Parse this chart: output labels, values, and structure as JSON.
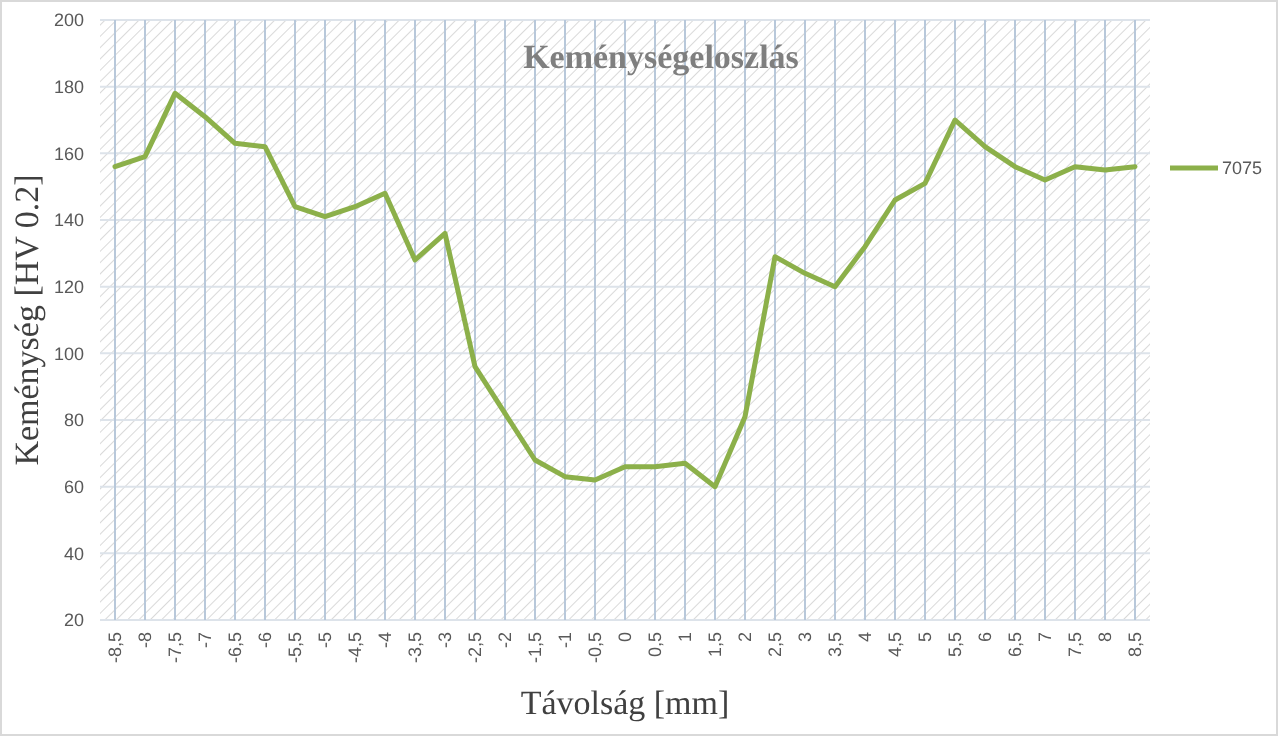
{
  "chart_data": {
    "type": "line",
    "title": "Keménységeloszlás",
    "xlabel": "Távolság [mm]",
    "ylabel": "Keménység [HV 0.2]",
    "categories": [
      "-8,5",
      "-8",
      "-7,5",
      "-7",
      "-6,5",
      "-6",
      "-5,5",
      "-5",
      "-4,5",
      "-4",
      "-3,5",
      "-3",
      "-2,5",
      "-2",
      "-1,5",
      "-1",
      "-0,5",
      "0",
      "0,5",
      "1",
      "1,5",
      "2",
      "2,5",
      "3",
      "3,5",
      "4",
      "4,5",
      "5",
      "5,5",
      "6",
      "6,5",
      "7",
      "7,5",
      "8",
      "8,5"
    ],
    "series": [
      {
        "name": "7075",
        "color": "#8cb04a",
        "values": [
          156,
          159,
          178,
          171,
          163,
          162,
          144,
          141,
          144,
          148,
          128,
          136,
          96,
          82,
          68,
          63,
          62,
          66,
          66,
          67,
          60,
          81,
          129,
          124,
          120,
          132,
          146,
          151,
          170,
          162,
          156,
          152,
          156,
          155,
          156
        ]
      }
    ],
    "ylim": [
      20,
      200
    ],
    "yticks": [
      20,
      40,
      60,
      80,
      100,
      120,
      140,
      160,
      180,
      200
    ],
    "grid": true,
    "legend": "right",
    "marker": "none",
    "line_style": "solid"
  }
}
